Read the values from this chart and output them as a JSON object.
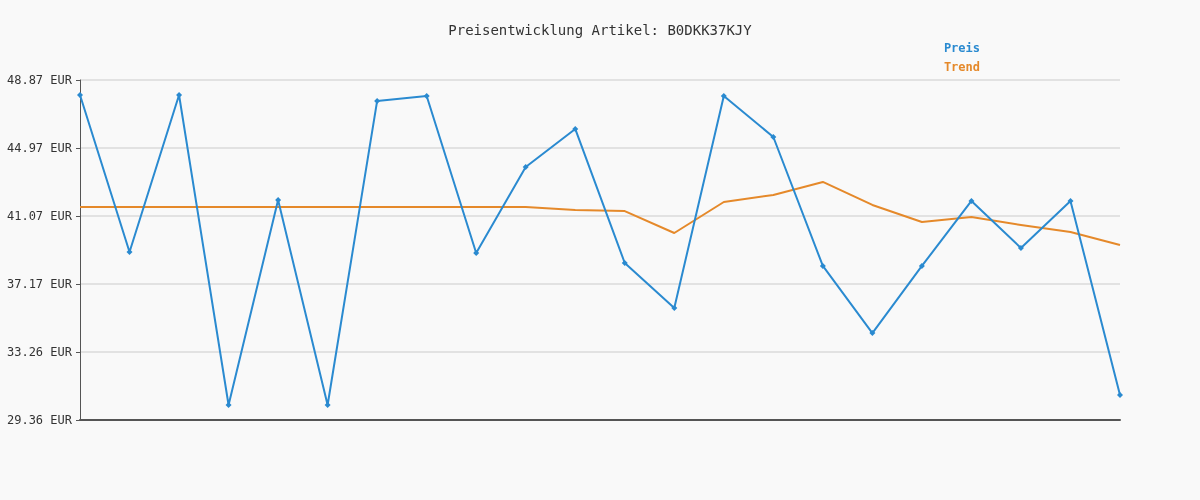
{
  "chart_data": {
    "type": "line",
    "title": "Preisentwicklung Artikel: B0DKK37KJY",
    "categories": [
      null,
      null,
      null,
      null,
      null,
      null,
      null,
      null,
      null,
      null,
      null,
      null,
      null,
      null,
      null,
      null,
      null,
      null,
      null,
      null,
      null,
      null
    ],
    "series": [
      {
        "name": "Preis",
        "color": "#2a8ad0",
        "marker": "diamond",
        "values": [
          48.01,
          39.0,
          48.01,
          30.22,
          41.98,
          30.22,
          47.67,
          47.95,
          38.94,
          43.88,
          46.06,
          38.37,
          35.79,
          47.95,
          45.6,
          38.2,
          34.35,
          38.2,
          41.93,
          39.23,
          41.93,
          30.8
        ]
      },
      {
        "name": "Trend",
        "color": "#e5892a",
        "marker": "none",
        "values": [
          41.58,
          41.58,
          41.58,
          41.58,
          41.58,
          41.58,
          41.58,
          41.58,
          41.58,
          41.58,
          41.41,
          41.35,
          40.09,
          41.87,
          42.27,
          43.02,
          41.7,
          40.72,
          41.01,
          40.55,
          40.15,
          39.4
        ]
      }
    ],
    "ylim": [
      29.36,
      48.87
    ],
    "yticks": [
      {
        "value": 29.36,
        "label": "29.36 EUR"
      },
      {
        "value": 33.26,
        "label": "33.26 EUR"
      },
      {
        "value": 37.17,
        "label": "37.17 EUR"
      },
      {
        "value": 41.07,
        "label": "41.07 EUR"
      },
      {
        "value": 44.97,
        "label": "44.97 EUR"
      },
      {
        "value": 48.87,
        "label": "48.87 EUR"
      }
    ],
    "grid": "y",
    "legend": "top right",
    "tick_labels": "y"
  }
}
